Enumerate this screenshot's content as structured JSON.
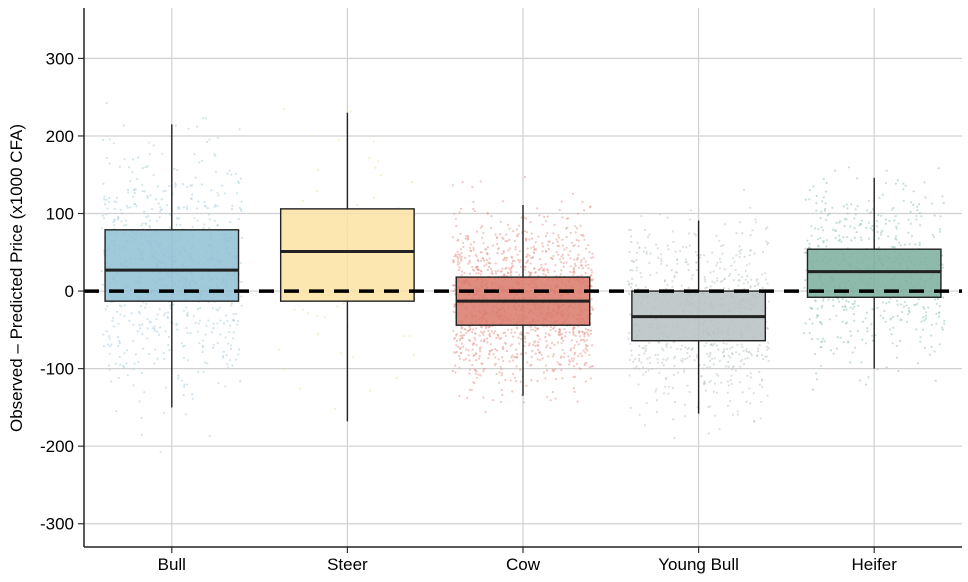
{
  "chart_data": {
    "type": "box",
    "title": "",
    "xlabel": "",
    "ylabel": "Observed – Predicted Price (x1000 CFA)",
    "ylim": [
      -330,
      365
    ],
    "yticks": [
      -300,
      -200,
      -100,
      0,
      100,
      200,
      300
    ],
    "grid": true,
    "reference_line": {
      "y": 0,
      "style": "dashed",
      "color": "#000000"
    },
    "categories": [
      "Bull",
      "Steer",
      "Cow",
      "Young Bull",
      "Heifer"
    ],
    "boxes": [
      {
        "category": "Bull",
        "color": "#8fbfd3",
        "whisker_low": -150,
        "q1": -13,
        "median": 27,
        "q3": 79,
        "whisker_high": 215
      },
      {
        "category": "Steer",
        "color": "#fbe3a2",
        "whisker_low": -168,
        "q1": -13,
        "median": 51,
        "q3": 106,
        "whisker_high": 230
      },
      {
        "category": "Cow",
        "color": "#d9796a",
        "whisker_low": -135,
        "q1": -44,
        "median": -13,
        "q3": 18,
        "whisker_high": 111
      },
      {
        "category": "Young Bull",
        "color": "#b7c0c1",
        "whisker_low": -158,
        "q1": -64,
        "median": -33,
        "q3": 0,
        "whisker_high": 91
      },
      {
        "category": "Heifer",
        "color": "#7aae9e",
        "whisker_low": -100,
        "q1": -8,
        "median": 25,
        "q3": 54,
        "whisker_high": 146
      }
    ],
    "jitter": [
      {
        "category": "Bull",
        "color": "#a9cfdd",
        "count": 700,
        "mean": 25,
        "sd": 80
      },
      {
        "category": "Steer",
        "color": "#f6dca0",
        "count": 70,
        "mean": 45,
        "sd": 95
      },
      {
        "category": "Cow",
        "color": "#e69a90",
        "count": 1400,
        "mean": -12,
        "sd": 52
      },
      {
        "category": "Young Bull",
        "color": "#bcc6c6",
        "count": 700,
        "mean": -32,
        "sd": 60
      },
      {
        "category": "Heifer",
        "color": "#98c4b5",
        "count": 550,
        "mean": 24,
        "sd": 58
      }
    ]
  }
}
